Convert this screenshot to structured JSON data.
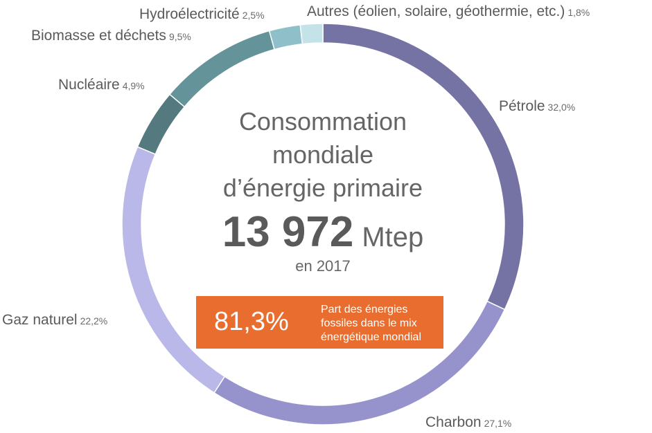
{
  "chart_data": {
    "type": "pie",
    "title_lines": [
      "Consommation",
      "mondiale",
      "d’énergie primaire"
    ],
    "total_value": "13 972",
    "total_unit": "Mtep",
    "year_label": "en 2017",
    "highlight": {
      "value": "81,3%",
      "text": "Part des énergies fossiles dans le mix énergétique mondial"
    },
    "slices": [
      {
        "name": "Pétrole",
        "label": "32,0%",
        "value": 32.0,
        "color": "#7573a4"
      },
      {
        "name": "Charbon",
        "label": "27,1%",
        "value": 27.1,
        "color": "#9592cc"
      },
      {
        "name": "Gaz naturel",
        "label": "22,2%",
        "value": 22.2,
        "color": "#b9b8e8"
      },
      {
        "name": "Nucléaire",
        "label": "4,9%",
        "value": 4.9,
        "color": "#547a7f"
      },
      {
        "name": "Biomasse et déchets",
        "label": "9,5%",
        "value": 9.5,
        "color": "#65939a"
      },
      {
        "name": "Hydroélectricité",
        "label": "2,5%",
        "value": 2.5,
        "color": "#8fc0c9"
      },
      {
        "name": "Autres (éolien, solaire, géothermie, etc.)",
        "label": "1,8%",
        "value": 1.8,
        "color": "#c3e3e8"
      }
    ]
  }
}
